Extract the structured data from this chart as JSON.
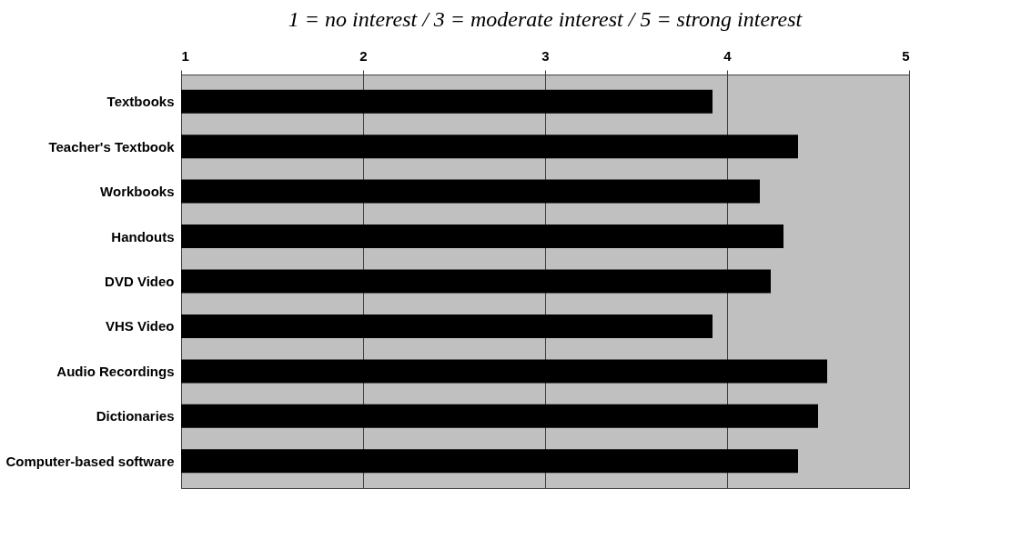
{
  "chart_data": {
    "type": "bar",
    "orientation": "horizontal",
    "title": "1 = no interest  /  3 = moderate interest  /  5 = strong interest",
    "categories": [
      "Textbooks",
      "Teacher's Textbook",
      "Workbooks",
      "Handouts",
      "DVD Video",
      "VHS Video",
      "Audio Recordings",
      "Dictionaries",
      "Computer-based software"
    ],
    "values": [
      3.92,
      4.39,
      4.18,
      4.31,
      4.24,
      3.92,
      4.55,
      4.5,
      4.39
    ],
    "color": "#000000",
    "xlim": [
      1,
      5
    ],
    "xticks": [
      1,
      2,
      3,
      4,
      5
    ],
    "grid": "x"
  }
}
